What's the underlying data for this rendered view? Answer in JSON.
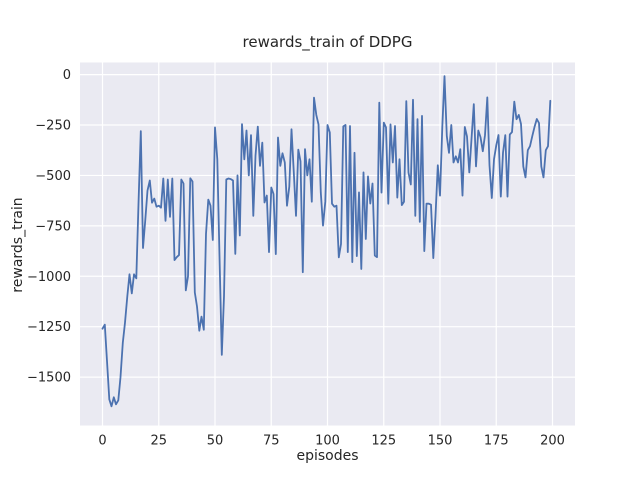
{
  "colors": {
    "figure_bg": "#ffffff",
    "axes_bg": "#eaeaf2",
    "grid": "#ffffff",
    "line": "#4c72b0",
    "text": "#262626"
  },
  "chart_data": {
    "type": "line",
    "title": "rewards_train of DDPG",
    "xlabel": "episodes",
    "ylabel": "rewards_train",
    "xlim": [
      -10,
      210
    ],
    "ylim": [
      -1740,
      60
    ],
    "grid": true,
    "legend": "none",
    "xticks": [
      0,
      25,
      50,
      75,
      100,
      125,
      150,
      175,
      200
    ],
    "xtick_labels": [
      "0",
      "25",
      "50",
      "75",
      "100",
      "125",
      "150",
      "175",
      "200"
    ],
    "yticks": [
      0,
      -250,
      -500,
      -750,
      -1000,
      -1250,
      -1500
    ],
    "ytick_labels": [
      "0",
      "−250",
      "−500",
      "−750",
      "−1000",
      "−1250",
      "−1500"
    ],
    "x_start": 0,
    "x_step": 1,
    "values": [
      -1260,
      -1240,
      -1420,
      -1610,
      -1645,
      -1600,
      -1635,
      -1615,
      -1500,
      -1330,
      -1230,
      -1100,
      -990,
      -1085,
      -990,
      -1010,
      -640,
      -280,
      -860,
      -720,
      -575,
      -525,
      -635,
      -615,
      -655,
      -650,
      -660,
      -515,
      -725,
      -520,
      -705,
      -515,
      -920,
      -905,
      -895,
      -520,
      -540,
      -1070,
      -1000,
      -514,
      -530,
      -1080,
      -1150,
      -1270,
      -1200,
      -1265,
      -790,
      -620,
      -650,
      -820,
      -262,
      -420,
      -900,
      -1390,
      -1100,
      -520,
      -515,
      -518,
      -525,
      -889,
      -500,
      -798,
      -246,
      -420,
      -277,
      -500,
      -300,
      -700,
      -402,
      -258,
      -452,
      -337,
      -634,
      -600,
      -880,
      -560,
      -592,
      -890,
      -312,
      -452,
      -390,
      -436,
      -650,
      -555,
      -271,
      -485,
      -700,
      -372,
      -430,
      -980,
      -370,
      -500,
      -420,
      -630,
      -114,
      -200,
      -247,
      -585,
      -749,
      -630,
      -250,
      -287,
      -640,
      -655,
      -650,
      -906,
      -840,
      -257,
      -250,
      -880,
      -255,
      -930,
      -388,
      -900,
      -584,
      -964,
      -485,
      -815,
      -505,
      -639,
      -540,
      -897,
      -905,
      -139,
      -585,
      -238,
      -262,
      -640,
      -247,
      -436,
      -255,
      -610,
      -420,
      -647,
      -630,
      -132,
      -486,
      -545,
      -125,
      -700,
      -221,
      -730,
      -205,
      -875,
      -640,
      -640,
      -645,
      -910,
      -700,
      -450,
      -600,
      -260,
      -8,
      -305,
      -388,
      -250,
      -436,
      -405,
      -436,
      -370,
      -600,
      -260,
      -307,
      -485,
      -320,
      -147,
      -455,
      -277,
      -310,
      -380,
      -300,
      -113,
      -450,
      -612,
      -420,
      -350,
      -300,
      -605,
      -388,
      -300,
      -605,
      -297,
      -285,
      -134,
      -221,
      -200,
      -245,
      -455,
      -510,
      -375,
      -355,
      -305,
      -260,
      -220,
      -240,
      -455,
      -510,
      -375,
      -355,
      -130
    ]
  }
}
